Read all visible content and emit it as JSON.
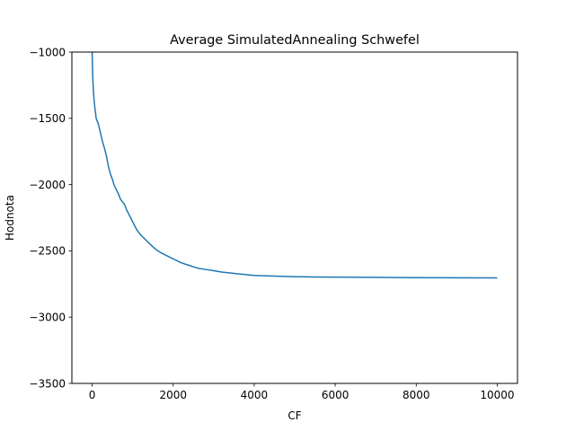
{
  "chart_data": {
    "type": "line",
    "title": "Average SimulatedAnnealing Schwefel",
    "xlabel": "CF",
    "ylabel": "Hodnota",
    "xlim": [
      -500,
      10500
    ],
    "ylim": [
      -3500,
      -1000
    ],
    "xticks": [
      0,
      2000,
      4000,
      6000,
      8000,
      10000
    ],
    "xtick_labels": [
      "0",
      "2000",
      "4000",
      "6000",
      "8000",
      "10000"
    ],
    "yticks": [
      -3500,
      -3000,
      -2500,
      -2000,
      -1500,
      -1000
    ],
    "ytick_labels": [
      "−3500",
      "−3000",
      "−2500",
      "−2000",
      "−1500",
      "−1000"
    ],
    "grid": false,
    "series": [
      {
        "color": "#1f77b4",
        "x": [
          0,
          20,
          40,
          60,
          80,
          100,
          150,
          200,
          250,
          300,
          350,
          400,
          450,
          500,
          550,
          600,
          650,
          700,
          750,
          800,
          850,
          900,
          950,
          1000,
          1100,
          1200,
          1300,
          1400,
          1500,
          1600,
          1700,
          1800,
          1900,
          2000,
          2200,
          2400,
          2600,
          2800,
          3000,
          3200,
          3500,
          4000,
          4500,
          5000,
          5500,
          6000,
          7000,
          8000,
          9000,
          10000
        ],
        "y": [
          -1000,
          -1230,
          -1330,
          -1400,
          -1450,
          -1500,
          -1540,
          -1600,
          -1670,
          -1720,
          -1780,
          -1860,
          -1920,
          -1960,
          -2010,
          -2040,
          -2070,
          -2110,
          -2130,
          -2150,
          -2190,
          -2220,
          -2250,
          -2280,
          -2340,
          -2380,
          -2410,
          -2440,
          -2470,
          -2495,
          -2515,
          -2530,
          -2545,
          -2560,
          -2590,
          -2610,
          -2630,
          -2640,
          -2650,
          -2660,
          -2670,
          -2685,
          -2690,
          -2695,
          -2697,
          -2698,
          -2700,
          -2702,
          -2703,
          -2704
        ]
      }
    ]
  }
}
